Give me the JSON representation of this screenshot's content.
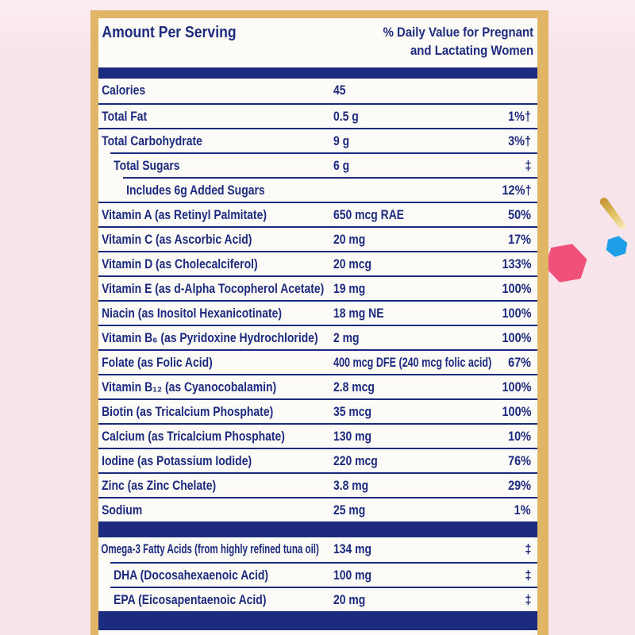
{
  "page": {
    "background_color": "#f8e5ec"
  },
  "decorations": {
    "pink_hexagon_color": "#f0517a",
    "blue_hexagon_color": "#1e9fe8",
    "streak_color_start": "#c09030",
    "streak_color_end": "#f7efc6"
  },
  "label": {
    "border_color": "#e0b566",
    "navy_color": "#1c2b7f",
    "header": {
      "amount_col": "Amount Per Serving",
      "dv_col_line1": "% Daily Value for Pregnant",
      "dv_col_line2": "and Lactating Women"
    },
    "rows": [
      {
        "name": "Calories",
        "amount": "45",
        "dv": "",
        "indent": 0
      },
      {
        "name": "Total Fat",
        "amount": "0.5 g",
        "dv": "1%†",
        "indent": 0
      },
      {
        "name": "Total Carbohydrate",
        "amount": "9 g",
        "dv": "3%†",
        "indent": 0
      },
      {
        "name": "Total Sugars",
        "amount": "6 g",
        "dv": "‡",
        "indent": 1
      },
      {
        "name": "Includes 6g Added Sugars",
        "amount": "",
        "dv": "12%†",
        "indent": 2
      },
      {
        "name": "Vitamin A (as Retinyl Palmitate)",
        "amount": "650 mcg RAE",
        "dv": "50%",
        "indent": 0
      },
      {
        "name": "Vitamin C (as Ascorbic Acid)",
        "amount": "20 mg",
        "dv": "17%",
        "indent": 0
      },
      {
        "name": "Vitamin D (as Cholecalciferol)",
        "amount": "20 mcg",
        "dv": "133%",
        "indent": 0
      },
      {
        "name": "Vitamin E (as d-Alpha Tocopherol Acetate)",
        "amount": "19 mg",
        "dv": "100%",
        "indent": 0
      },
      {
        "name": "Niacin (as Inositol Hexanicotinate)",
        "amount": "18 mg NE",
        "dv": "100%",
        "indent": 0
      },
      {
        "name": "Vitamin B₆ (as Pyridoxine Hydrochloride)",
        "amount": "2 mg",
        "dv": "100%",
        "indent": 0
      },
      {
        "name": "Folate (as Folic Acid)",
        "amount": "400 mcg DFE (240 mcg folic acid)",
        "dv": "67%",
        "indent": 0
      },
      {
        "name": "Vitamin B₁₂ (as Cyanocobalamin)",
        "amount": "2.8 mcg",
        "dv": "100%",
        "indent": 0
      },
      {
        "name": "Biotin (as Tricalcium Phosphate)",
        "amount": "35 mcg",
        "dv": "100%",
        "indent": 0
      },
      {
        "name": "Calcium (as Tricalcium Phosphate)",
        "amount": "130 mg",
        "dv": "10%",
        "indent": 0
      },
      {
        "name": "Iodine (as Potassium Iodide)",
        "amount": "220 mcg",
        "dv": "76%",
        "indent": 0
      },
      {
        "name": "Zinc (as Zinc Chelate)",
        "amount": "3.8 mg",
        "dv": "29%",
        "indent": 0
      },
      {
        "name": "Sodium",
        "amount": "25 mg",
        "dv": "1%",
        "indent": 0
      }
    ],
    "omega_rows": [
      {
        "name": "Omega-3 Fatty Acids (from highly refined tuna oil)",
        "amount": "134 mg",
        "dv": "‡",
        "indent": 0
      },
      {
        "name": "DHA (Docosahexaenoic Acid)",
        "amount": "100 mg",
        "dv": "‡",
        "indent": 1
      },
      {
        "name": "EPA (Eicosapentaenoic Acid)",
        "amount": "20 mg",
        "dv": "‡",
        "indent": 1
      }
    ]
  }
}
